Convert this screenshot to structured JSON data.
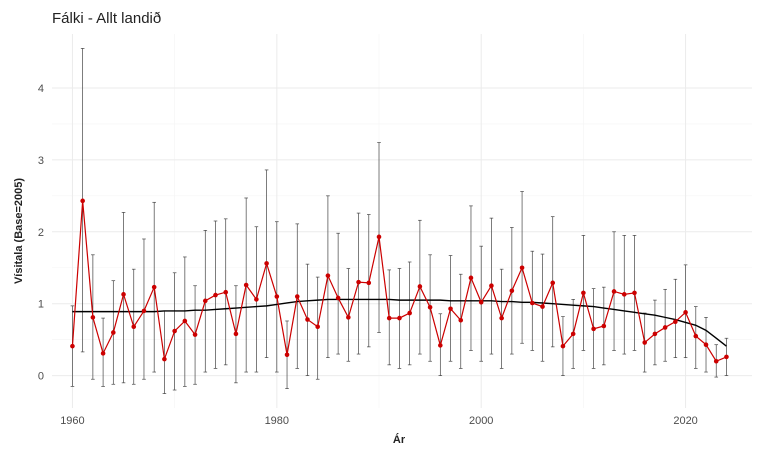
{
  "chart_data": {
    "type": "line",
    "title": "Fálki - Allt landið",
    "xlabel": "Ár",
    "ylabel": "Vísitala (Base=2005)",
    "xlim": [
      1958,
      2026.5
    ],
    "ylim": [
      -0.45,
      4.75
    ],
    "xticks": [
      1960,
      1980,
      2000,
      2020
    ],
    "yticks": [
      0,
      1,
      2,
      3,
      4
    ],
    "grid": true,
    "legend": "none",
    "colors": {
      "series": "#cc0000",
      "trend": "#000000",
      "errorbar": "#444444",
      "grid": "#ebebeb"
    },
    "x": [
      1960,
      1961,
      1962,
      1963,
      1964,
      1965,
      1966,
      1967,
      1968,
      1969,
      1970,
      1971,
      1972,
      1973,
      1974,
      1975,
      1976,
      1977,
      1978,
      1979,
      1980,
      1981,
      1982,
      1983,
      1984,
      1985,
      1986,
      1987,
      1988,
      1989,
      1990,
      1991,
      1992,
      1993,
      1994,
      1995,
      1996,
      1997,
      1998,
      1999,
      2000,
      2001,
      2002,
      2003,
      2004,
      2005,
      2006,
      2007,
      2008,
      2009,
      2010,
      2011,
      2012,
      2013,
      2014,
      2015,
      2016,
      2017,
      2018,
      2019,
      2020,
      2021,
      2022,
      2023,
      2024
    ],
    "series": [
      {
        "values": [
          0.41,
          2.43,
          0.81,
          0.31,
          0.6,
          1.13,
          0.68,
          0.9,
          1.23,
          0.23,
          0.62,
          0.76,
          0.57,
          1.04,
          1.12,
          1.16,
          0.58,
          1.26,
          1.06,
          1.56,
          1.1,
          0.29,
          1.1,
          0.78,
          0.68,
          1.39,
          1.08,
          0.81,
          1.3,
          1.29,
          1.93,
          0.8,
          0.8,
          0.87,
          1.24,
          0.95,
          0.42,
          0.93,
          0.77,
          1.36,
          1.02,
          1.25,
          0.8,
          1.18,
          1.5,
          1.01,
          0.96,
          1.29,
          0.41,
          0.58,
          1.15,
          0.65,
          0.69,
          1.17,
          1.13,
          1.15,
          0.46,
          0.58,
          0.67,
          0.75,
          0.88,
          0.55,
          0.43,
          0.2,
          0.26
        ],
        "lower": [
          -0.15,
          0.33,
          -0.05,
          -0.15,
          -0.12,
          -0.1,
          -0.12,
          -0.05,
          0.05,
          -0.25,
          -0.2,
          -0.15,
          -0.12,
          0.05,
          0.1,
          0.15,
          -0.1,
          0.05,
          0.05,
          0.25,
          0.05,
          -0.18,
          0.1,
          0.0,
          -0.05,
          0.25,
          0.3,
          0.2,
          0.3,
          0.4,
          0.6,
          0.15,
          0.1,
          0.15,
          0.3,
          0.2,
          0.0,
          0.2,
          0.1,
          0.35,
          0.2,
          0.3,
          0.1,
          0.3,
          0.45,
          0.35,
          0.2,
          0.4,
          0.0,
          0.1,
          0.35,
          0.1,
          0.15,
          0.35,
          0.3,
          0.35,
          0.05,
          0.15,
          0.2,
          0.25,
          0.25,
          0.1,
          0.05,
          -0.02,
          0.0
        ],
        "upper": [
          0.97,
          4.55,
          1.68,
          0.8,
          1.32,
          2.27,
          1.48,
          1.9,
          2.41,
          0.9,
          1.43,
          1.65,
          1.25,
          2.02,
          2.15,
          2.18,
          1.25,
          2.47,
          2.07,
          2.86,
          2.14,
          0.76,
          2.11,
          1.55,
          1.37,
          2.5,
          1.98,
          1.49,
          2.26,
          2.24,
          3.24,
          1.47,
          1.49,
          1.58,
          2.16,
          1.68,
          0.86,
          1.67,
          1.41,
          2.36,
          1.8,
          2.19,
          1.48,
          2.06,
          2.56,
          1.73,
          1.69,
          2.21,
          0.82,
          1.06,
          1.95,
          1.21,
          1.23,
          2.0,
          1.95,
          1.95,
          0.87,
          1.05,
          1.2,
          1.34,
          1.54,
          0.96,
          0.81,
          0.43,
          0.52
        ]
      },
      {
        "values": [
          0.89,
          0.89,
          0.89,
          0.89,
          0.89,
          0.89,
          0.89,
          0.89,
          0.89,
          0.9,
          0.9,
          0.9,
          0.91,
          0.91,
          0.92,
          0.93,
          0.94,
          0.95,
          0.96,
          0.97,
          0.99,
          1.01,
          1.03,
          1.04,
          1.05,
          1.06,
          1.06,
          1.06,
          1.06,
          1.06,
          1.06,
          1.06,
          1.05,
          1.05,
          1.05,
          1.05,
          1.05,
          1.04,
          1.04,
          1.04,
          1.04,
          1.04,
          1.03,
          1.03,
          1.02,
          1.02,
          1.01,
          1.0,
          0.99,
          0.98,
          0.97,
          0.96,
          0.94,
          0.92,
          0.9,
          0.88,
          0.86,
          0.84,
          0.81,
          0.78,
          0.74,
          0.7,
          0.63,
          0.52,
          0.41
        ]
      }
    ]
  }
}
